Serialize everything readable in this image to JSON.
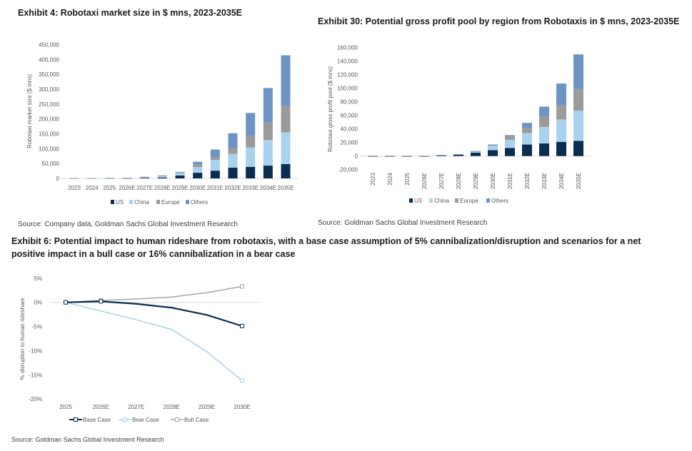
{
  "colors": {
    "US": "#0b2d52",
    "China": "#a9d2ee",
    "Europe": "#9b9b9b",
    "Others": "#6e94c4",
    "Base Case": "#0b2d52",
    "Bear Case": "#a9d2ee",
    "Bull Case": "#a6a6a6"
  },
  "exhibits": [
    {
      "title": "Exhibit 4: Robotaxi market size in $ mns, 2023-2035E",
      "source": "Source: Company data, Goldman Sachs Global Investment Research"
    },
    {
      "title": "Exhibit 30: Potential gross profit pool by region from Robotaxis in $ mns, 2023-2035E",
      "source": "Source: Goldman Sachs Global Investment Research"
    },
    {
      "title": "Exhibit 6: Potential impact to human rideshare from robotaxis, with a base case assumption of 5% cannibalization/disruption and scenarios for a net positive impact in a bull case or 16% cannibalization in a bear case",
      "source": "Source: Goldman Sachs Global Investment Research"
    }
  ],
  "chart_data": [
    {
      "type": "bar",
      "stacked": true,
      "ylabel": "Robotaxi market size ($ mns)",
      "ylim": [
        0,
        450000
      ],
      "yticks": [
        "0",
        "50,000",
        "100,000",
        "150,000",
        "200,000",
        "250,000",
        "300,000",
        "350,000",
        "400,000",
        "450,000"
      ],
      "categories": [
        "2023",
        "2024",
        "2025",
        "2026E",
        "2027E",
        "2028E",
        "2029E",
        "2030E",
        "2031E",
        "2032E",
        "2033E",
        "2034E",
        "2035E"
      ],
      "legend": "bottom",
      "series": [
        {
          "name": "US",
          "values": [
            500,
            500,
            600,
            700,
            2000,
            3000,
            10000,
            19000,
            26000,
            36000,
            39000,
            43000,
            48000
          ]
        },
        {
          "name": "China",
          "values": [
            300,
            300,
            400,
            500,
            1500,
            4000,
            8000,
            19000,
            36000,
            46000,
            65000,
            86000,
            107000
          ]
        },
        {
          "name": "Europe",
          "values": [
            100,
            100,
            200,
            300,
            500,
            1500,
            2000,
            8000,
            10000,
            19000,
            38000,
            59000,
            88000
          ]
        },
        {
          "name": "Others",
          "values": [
            100,
            200,
            300,
            400,
            1000,
            1500,
            2000,
            10000,
            25000,
            51000,
            78000,
            116000,
            171000
          ]
        }
      ]
    },
    {
      "type": "bar",
      "stacked": true,
      "ylabel": "Robotaxi gross profit pool ($ mns)",
      "ylim": [
        -20000,
        160000
      ],
      "yticks": [
        "-20,000",
        "0",
        "20,000",
        "40,000",
        "60,000",
        "80,000",
        "100,000",
        "120,000",
        "140,000",
        "160,000"
      ],
      "categories": [
        "2023",
        "2024",
        "2025",
        "2026E",
        "2027E",
        "2028E",
        "2029E",
        "2030E",
        "2031E",
        "2032E",
        "2033E",
        "2034E",
        "2035E"
      ],
      "legend": "bottom",
      "series": [
        {
          "name": "US",
          "values": [
            -300,
            -300,
            -300,
            -300,
            900,
            1800,
            5000,
            8800,
            12000,
            17000,
            18600,
            21000,
            22500
          ]
        },
        {
          "name": "China",
          "values": [
            -200,
            -200,
            -200,
            -200,
            300,
            500,
            1500,
            6700,
            12000,
            17000,
            24400,
            33000,
            44500
          ]
        },
        {
          "name": "Europe",
          "values": [
            -100,
            -100,
            -100,
            -100,
            200,
            300,
            500,
            500,
            5500,
            7000,
            15000,
            21000,
            32000
          ]
        },
        {
          "name": "Others",
          "values": [
            -100,
            -100,
            -100,
            -100,
            300,
            300,
            500,
            1000,
            1500,
            8000,
            15000,
            32000,
            51000
          ]
        }
      ]
    },
    {
      "type": "line",
      "ylabel": "% disruption to human rideshare",
      "ylim": [
        -20,
        5
      ],
      "yticks": [
        "5%",
        "0%",
        "-5%",
        "-10%",
        "-15%",
        "-20%"
      ],
      "categories": [
        "2025",
        "2026E",
        "2027E",
        "2028E",
        "2029E",
        "2030E"
      ],
      "legend": "bottom",
      "series": [
        {
          "name": "Base Case",
          "values": [
            0,
            0.2,
            -0.3,
            -1.1,
            -2.6,
            -4.9
          ]
        },
        {
          "name": "Bear Case",
          "values": [
            0,
            -1.8,
            -3.6,
            -5.6,
            -10.2,
            -16.2
          ]
        },
        {
          "name": "Bull Case",
          "values": [
            0,
            0.4,
            0.7,
            1.1,
            2.0,
            3.3
          ]
        }
      ]
    }
  ]
}
